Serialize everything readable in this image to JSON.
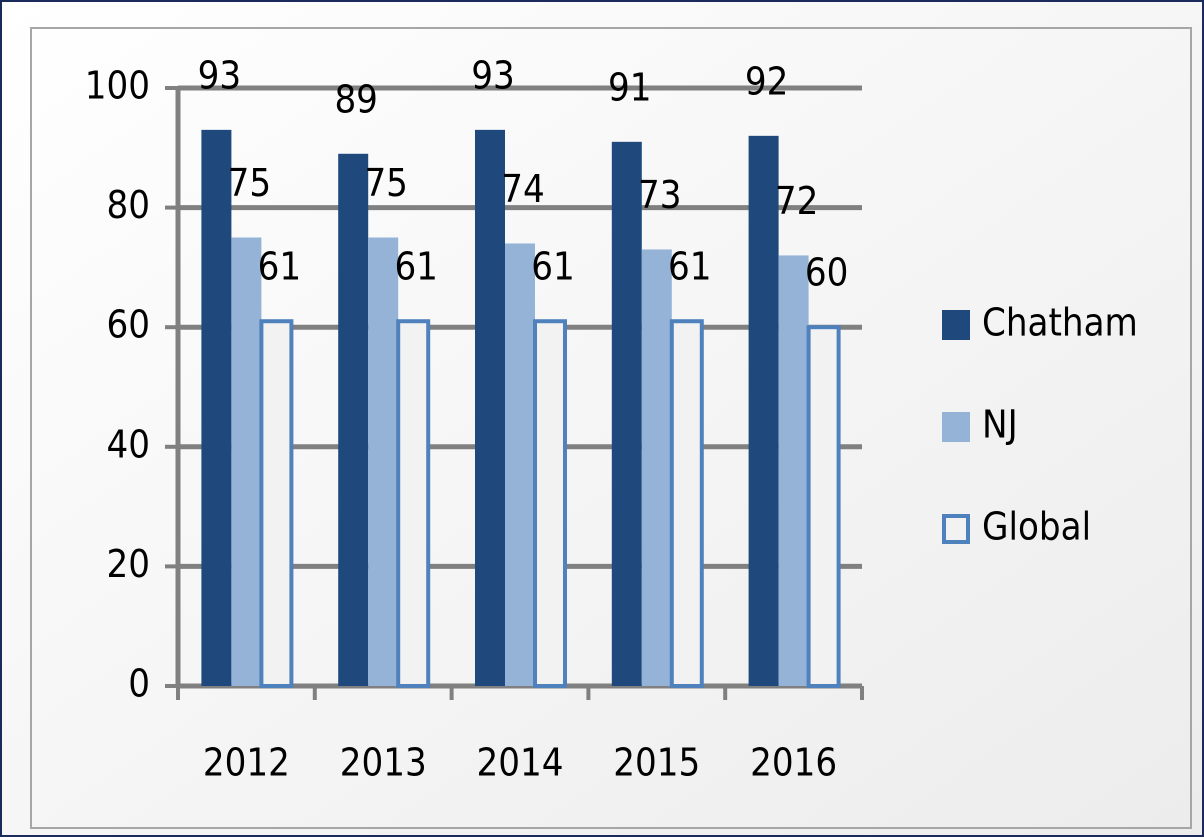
{
  "chart_data": {
    "type": "bar",
    "categories": [
      "2012",
      "2013",
      "2014",
      "2015",
      "2016"
    ],
    "series": [
      {
        "name": "Chatham",
        "color": "#1f497d",
        "values": [
          93,
          89,
          93,
          91,
          92
        ]
      },
      {
        "name": "NJ",
        "color": "#95b3d7",
        "values": [
          75,
          75,
          74,
          73,
          72
        ]
      },
      {
        "name": "Global",
        "color": "#f2f2f2",
        "outline": "#4f81bd",
        "values": [
          61,
          61,
          61,
          61,
          60
        ]
      }
    ],
    "ylim": [
      0,
      100
    ],
    "yticks": [
      0,
      20,
      40,
      60,
      80,
      100
    ],
    "grid": true,
    "legend": "right"
  }
}
